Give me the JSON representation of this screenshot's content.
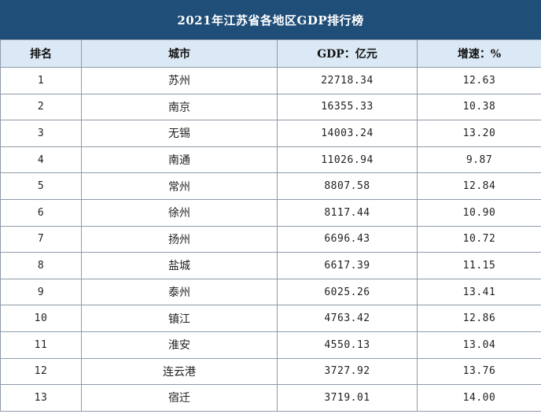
{
  "title": "2021年江苏省各地区GDP排行榜",
  "headers": {
    "rank": "排名",
    "city": "城市",
    "gdp": "GDP：亿元",
    "growth": "增速：%"
  },
  "rows": [
    {
      "rank": "1",
      "city": "苏州",
      "gdp": "22718.34",
      "growth": "12.63"
    },
    {
      "rank": "2",
      "city": "南京",
      "gdp": "16355.33",
      "growth": "10.38"
    },
    {
      "rank": "3",
      "city": "无锡",
      "gdp": "14003.24",
      "growth": "13.20"
    },
    {
      "rank": "4",
      "city": "南通",
      "gdp": "11026.94",
      "growth": "9.87"
    },
    {
      "rank": "5",
      "city": "常州",
      "gdp": "8807.58",
      "growth": "12.84"
    },
    {
      "rank": "6",
      "city": "徐州",
      "gdp": "8117.44",
      "growth": "10.90"
    },
    {
      "rank": "7",
      "city": "扬州",
      "gdp": "6696.43",
      "growth": "10.72"
    },
    {
      "rank": "8",
      "city": "盐城",
      "gdp": "6617.39",
      "growth": "11.15"
    },
    {
      "rank": "9",
      "city": "泰州",
      "gdp": "6025.26",
      "growth": "13.41"
    },
    {
      "rank": "10",
      "city": "镇江",
      "gdp": "4763.42",
      "growth": "12.86"
    },
    {
      "rank": "11",
      "city": "淮安",
      "gdp": "4550.13",
      "growth": "13.04"
    },
    {
      "rank": "12",
      "city": "连云港",
      "gdp": "3727.92",
      "growth": "13.76"
    },
    {
      "rank": "13",
      "city": "宿迁",
      "gdp": "3719.01",
      "growth": "14.00"
    }
  ]
}
